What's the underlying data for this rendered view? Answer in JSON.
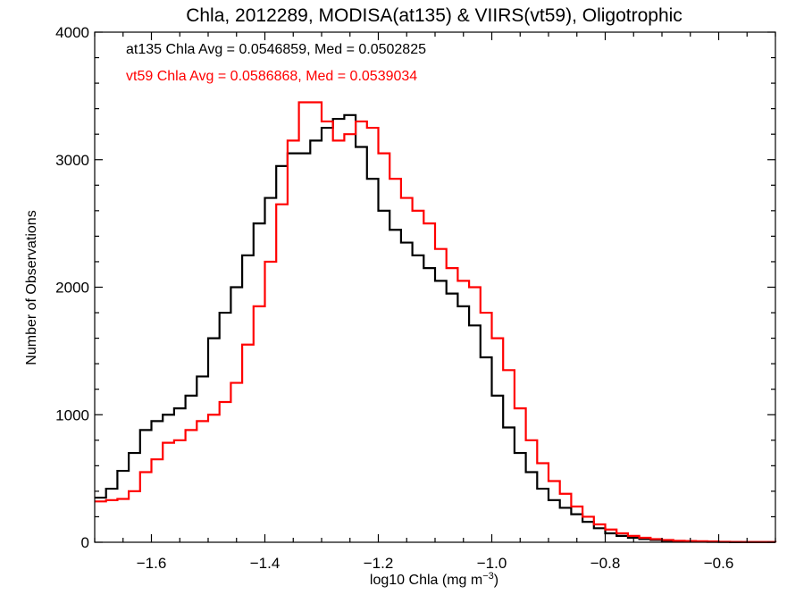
{
  "chart_data": {
    "type": "line",
    "title": "Chla, 2012289, MODISA(at135) & VIIRS(vt59), Oligotrophic",
    "xlabel_main": "log10 Chla (mg m",
    "xlabel_sup": "−3",
    "xlabel_close": ")",
    "ylabel": "Number of Observations",
    "xlim": [
      -1.7,
      -0.5
    ],
    "ylim": [
      0,
      4000
    ],
    "x_ticks": [
      -1.6,
      -1.4,
      -1.2,
      -1.0,
      -0.8,
      -0.6
    ],
    "x_tick_labels": [
      "−1.6",
      "−1.4",
      "−1.2",
      "−1.0",
      "−0.8",
      "−0.6"
    ],
    "y_ticks": [
      0,
      1000,
      2000,
      3000,
      4000
    ],
    "y_tick_labels": [
      "0",
      "1000",
      "2000",
      "3000",
      "4000"
    ],
    "grid": false,
    "annotations": [
      {
        "text": "at135 Chla Avg = 0.0546859, Med = 0.0502825",
        "color": "#000000"
      },
      {
        "text": "vt59 Chla Avg = 0.0586868, Med = 0.0539034",
        "color": "#ff0000"
      }
    ],
    "series": [
      {
        "color": "#000000",
        "x": [
          -1.7,
          -1.68,
          -1.66,
          -1.64,
          -1.62,
          -1.6,
          -1.58,
          -1.56,
          -1.54,
          -1.52,
          -1.5,
          -1.48,
          -1.46,
          -1.44,
          -1.42,
          -1.4,
          -1.38,
          -1.36,
          -1.34,
          -1.32,
          -1.3,
          -1.28,
          -1.26,
          -1.24,
          -1.22,
          -1.2,
          -1.18,
          -1.16,
          -1.14,
          -1.12,
          -1.1,
          -1.08,
          -1.06,
          -1.04,
          -1.02,
          -1.0,
          -0.98,
          -0.96,
          -0.94,
          -0.92,
          -0.9,
          -0.88,
          -0.86,
          -0.84,
          -0.82,
          -0.8,
          -0.78,
          -0.76,
          -0.74,
          -0.72,
          -0.7,
          -0.68,
          -0.66,
          -0.64,
          -0.62,
          -0.6,
          -0.58,
          -0.56,
          -0.54,
          -0.52,
          -0.5
        ],
        "y": [
          350,
          420,
          560,
          700,
          880,
          950,
          1000,
          1050,
          1150,
          1300,
          1600,
          1800,
          2000,
          2250,
          2500,
          2700,
          2950,
          3050,
          3050,
          3150,
          3250,
          3320,
          3350,
          3100,
          2850,
          2600,
          2450,
          2350,
          2250,
          2150,
          2050,
          1950,
          1850,
          1700,
          1450,
          1150,
          900,
          700,
          550,
          420,
          330,
          270,
          220,
          160,
          110,
          70,
          50,
          35,
          25,
          18,
          12,
          8,
          6,
          4,
          3,
          2,
          1,
          1,
          1,
          1,
          0
        ]
      },
      {
        "color": "#ff0000",
        "x": [
          -1.7,
          -1.68,
          -1.66,
          -1.64,
          -1.62,
          -1.6,
          -1.58,
          -1.56,
          -1.54,
          -1.52,
          -1.5,
          -1.48,
          -1.46,
          -1.44,
          -1.42,
          -1.4,
          -1.38,
          -1.36,
          -1.34,
          -1.32,
          -1.3,
          -1.28,
          -1.26,
          -1.24,
          -1.22,
          -1.2,
          -1.18,
          -1.16,
          -1.14,
          -1.12,
          -1.1,
          -1.08,
          -1.06,
          -1.04,
          -1.02,
          -1.0,
          -0.98,
          -0.96,
          -0.94,
          -0.92,
          -0.9,
          -0.88,
          -0.86,
          -0.84,
          -0.82,
          -0.8,
          -0.78,
          -0.76,
          -0.74,
          -0.72,
          -0.7,
          -0.68,
          -0.66,
          -0.64,
          -0.62,
          -0.6,
          -0.58,
          -0.56,
          -0.54,
          -0.52,
          -0.5
        ],
        "y": [
          320,
          330,
          340,
          400,
          550,
          650,
          780,
          800,
          880,
          950,
          1000,
          1100,
          1250,
          1550,
          1850,
          2200,
          2650,
          3150,
          3450,
          3450,
          3300,
          3150,
          3200,
          3300,
          3250,
          3050,
          2850,
          2700,
          2600,
          2500,
          2300,
          2150,
          2050,
          2000,
          1800,
          1600,
          1350,
          1050,
          800,
          620,
          480,
          380,
          280,
          200,
          140,
          100,
          70,
          50,
          35,
          25,
          18,
          12,
          10,
          8,
          6,
          4,
          3,
          2,
          2,
          2,
          1
        ]
      }
    ]
  }
}
